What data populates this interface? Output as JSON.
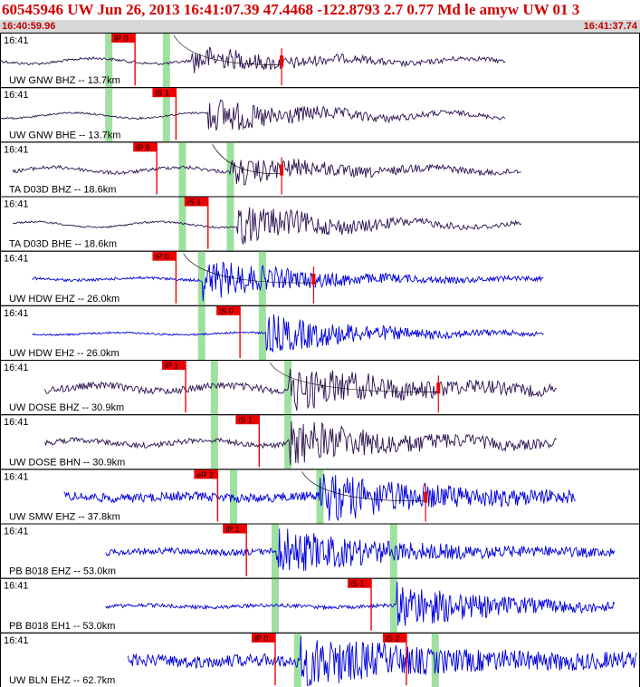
{
  "header": {
    "title": "60545946 UW Jun 26, 2013 16:41:07.39   47.4468 -122.8793  2.7 0.77 Md le amyw UW 01   3",
    "start_time": "16:40:59.96",
    "end_time": "16:41:37.74"
  },
  "colors": {
    "title": "#d00000",
    "time_bar_bg": "#d8d8d8",
    "trace_dark": "#2b1050",
    "trace_blue": "#0000dd",
    "pick_marker": "#ee0000",
    "window_band": "#9fe0a0",
    "border": "#000000"
  },
  "panels": [
    {
      "time": "16:41",
      "label": "UW GNW BHZ -- 13.7km",
      "color": "dark",
      "pick": "iP 0",
      "pick_t": 0.211,
      "band_t": 0.26,
      "extra_band_t": 0.17,
      "trace_start": 0.0,
      "trace_end": 0.79,
      "event_t": 0.3,
      "amp": 14,
      "noise": 3,
      "end_pick_t": 0.44
    },
    {
      "time": "16:41",
      "label": "UW GNW BHE -- 13.7km",
      "color": "dark",
      "pick": "iS 1",
      "pick_t": 0.275,
      "band_t": 0.26,
      "extra_band_t": 0.17,
      "trace_start": 0.0,
      "trace_end": 0.79,
      "event_t": 0.325,
      "amp": 20,
      "noise": 2,
      "end_pick_t": null
    },
    {
      "time": "16:41",
      "label": "TA D03D BHZ -- 18.6km",
      "color": "dark",
      "pick": "iP 0",
      "pick_t": 0.245,
      "band_t": 0.36,
      "extra_band_t": 0.285,
      "trace_start": 0.02,
      "trace_end": 0.815,
      "event_t": 0.36,
      "amp": 14,
      "noise": 4,
      "end_pick_t": 0.44
    },
    {
      "time": "16:41",
      "label": "TA D03D BHE -- 18.6km",
      "color": "dark",
      "pick": "iS 1",
      "pick_t": 0.325,
      "band_t": 0.36,
      "extra_band_t": 0.285,
      "trace_start": 0.02,
      "trace_end": 0.815,
      "event_t": 0.37,
      "amp": 22,
      "noise": 2,
      "end_pick_t": null
    },
    {
      "time": "16:41",
      "label": "UW HDW EHZ -- 26.0km",
      "color": "blue",
      "pick": "iP 0",
      "pick_t": 0.275,
      "band_t": 0.41,
      "extra_band_t": 0.315,
      "trace_start": 0.05,
      "trace_end": 0.85,
      "event_t": 0.315,
      "amp": 22,
      "noise": 3,
      "end_pick_t": 0.49
    },
    {
      "time": "16:41",
      "label": "UW HDW EH2 -- 26.0km",
      "color": "blue",
      "pick": "iS 0",
      "pick_t": 0.375,
      "band_t": 0.41,
      "extra_band_t": 0.315,
      "trace_start": 0.05,
      "trace_end": 0.85,
      "event_t": 0.415,
      "amp": 22,
      "noise": 2,
      "end_pick_t": null
    },
    {
      "time": "16:41",
      "label": "UW DOSE BHZ -- 30.9km",
      "color": "dark",
      "pick": "iP 1",
      "pick_t": 0.29,
      "band_t": 0.45,
      "extra_band_t": 0.335,
      "trace_start": 0.07,
      "trace_end": 0.87,
      "event_t": 0.45,
      "amp": 22,
      "noise": 8,
      "end_pick_t": 0.685
    },
    {
      "time": "16:41",
      "label": "UW DOSE BHN -- 30.9km",
      "color": "dark",
      "pick": "iS 1",
      "pick_t": 0.405,
      "band_t": 0.45,
      "extra_band_t": 0.335,
      "trace_start": 0.07,
      "trace_end": 0.87,
      "event_t": 0.45,
      "amp": 24,
      "noise": 6,
      "end_pick_t": null
    },
    {
      "time": "16:41",
      "label": "UW SMW EHZ -- 37.8km",
      "color": "blue",
      "pick": "eP 2",
      "pick_t": 0.34,
      "band_t": 0.5,
      "extra_band_t": 0.365,
      "trace_start": 0.1,
      "trace_end": 0.9,
      "event_t": 0.5,
      "amp": 24,
      "noise": 10,
      "end_pick_t": 0.665
    },
    {
      "time": "16:41",
      "label": "PB B018 EHZ -- 53.0km",
      "color": "blue",
      "pick": "iP 1",
      "pick_t": 0.385,
      "band_t": 0.615,
      "extra_band_t": 0.43,
      "trace_start": 0.165,
      "trace_end": 0.96,
      "event_t": 0.43,
      "amp": 24,
      "noise": 7,
      "end_pick_t": null
    },
    {
      "time": "16:41",
      "label": "PB B018 EH1 -- 53.0km",
      "color": "blue",
      "pick": "iS 1",
      "pick_t": 0.58,
      "band_t": 0.615,
      "extra_band_t": 0.43,
      "trace_start": 0.165,
      "trace_end": 0.96,
      "event_t": 0.62,
      "amp": 24,
      "noise": 4,
      "end_pick_t": null
    },
    {
      "time": "16:41",
      "label": "UW BLN EHZ -- 62.7km",
      "color": "blue",
      "pick": "iP 0",
      "pick_t": 0.43,
      "band_t": 0.68,
      "extra_band_t": 0.465,
      "trace_start": 0.2,
      "trace_end": 0.995,
      "event_t": 0.47,
      "amp": 24,
      "noise": 14,
      "end_pick_t": null,
      "second_pick": "iS 2",
      "second_pick_t": 0.635
    }
  ]
}
